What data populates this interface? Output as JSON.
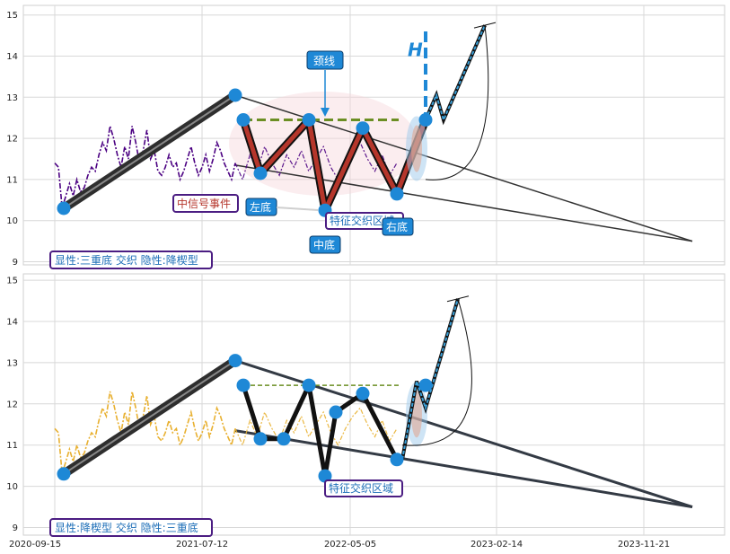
{
  "chart_data": [
    {
      "type": "line",
      "panel": "top",
      "ylim": [
        8.9,
        15.2
      ],
      "yticks": [
        "9",
        "10",
        "11",
        "12",
        "13",
        "14",
        "15"
      ],
      "colors": {
        "price": "#4b0082",
        "pattern": "#b5362b",
        "neckline": "#6b8e23",
        "marker": "#1e88d6",
        "trend": "#333333"
      },
      "series": [
        {
          "values": [
            11.4,
            11.3,
            10.3,
            10.6,
            10.9,
            10.6,
            11.0,
            10.7,
            10.8,
            11.1,
            11.3,
            11.2,
            11.6,
            11.9,
            11.7,
            12.3,
            12.0,
            11.6,
            11.3,
            11.8,
            11.5,
            12.3,
            11.9,
            11.4,
            11.7,
            12.2,
            11.5,
            11.7,
            11.2,
            11.1,
            11.3,
            11.6,
            11.3,
            11.4,
            11.0,
            11.2,
            11.5,
            11.8,
            11.4,
            11.1,
            11.3,
            11.6,
            11.2,
            11.5,
            11.9,
            11.7,
            11.4,
            11.2,
            11.0,
            11.4
          ]
        }
      ],
      "pattern_points": [
        {
          "label": "",
          "value": 10.3
        },
        {
          "label": "",
          "value": 13.05
        },
        {
          "label": "",
          "value": 12.45
        },
        {
          "label": "",
          "value": 11.15
        },
        {
          "label": "",
          "value": 12.45
        },
        {
          "label": "",
          "value": 10.25
        },
        {
          "label": "",
          "value": 12.25
        },
        {
          "label": "",
          "value": 10.65
        },
        {
          "label": "",
          "value": 12.45
        }
      ],
      "neckline": 12.45,
      "h_label": "H",
      "annotations": {
        "neckline_label": "颈线",
        "event_label": "中信号事件",
        "left_bottom": "左底",
        "mid_bottom": "中底",
        "right_bottom": "右底",
        "zone_label": "特征交织区域",
        "summary": "显性:三重底 交织 隐性:降楔型"
      }
    },
    {
      "type": "line",
      "panel": "bottom",
      "ylim": [
        8.9,
        15.2
      ],
      "yticks": [
        "9",
        "10",
        "11",
        "12",
        "13",
        "14",
        "15"
      ],
      "xticks": [
        "2020-09-15",
        "2021-07-12",
        "2022-05-05",
        "2023-02-14",
        "2023-11-21"
      ],
      "colors": {
        "price": "#e8b030",
        "pattern": "#111111",
        "neckline": "#6b8e23",
        "marker": "#1e88d6",
        "trend": "#333a44"
      },
      "series": [
        {
          "values": [
            11.4,
            11.3,
            10.3,
            10.6,
            10.9,
            10.6,
            11.0,
            10.7,
            10.8,
            11.1,
            11.3,
            11.2,
            11.6,
            11.9,
            11.7,
            12.3,
            12.0,
            11.6,
            11.3,
            11.8,
            11.5,
            12.3,
            11.9,
            11.4,
            11.7,
            12.2,
            11.5,
            11.7,
            11.2,
            11.1,
            11.3,
            11.6,
            11.3,
            11.4,
            11.0,
            11.2,
            11.5,
            11.8,
            11.4,
            11.1,
            11.3,
            11.6,
            11.2,
            11.5,
            11.9,
            11.7,
            11.4,
            11.2,
            11.0,
            11.4
          ]
        }
      ],
      "neckline": 12.45,
      "annotations": {
        "zone_label": "特征交织区域",
        "summary": "显性:降楔型 交织 隐性:三重底"
      }
    }
  ]
}
